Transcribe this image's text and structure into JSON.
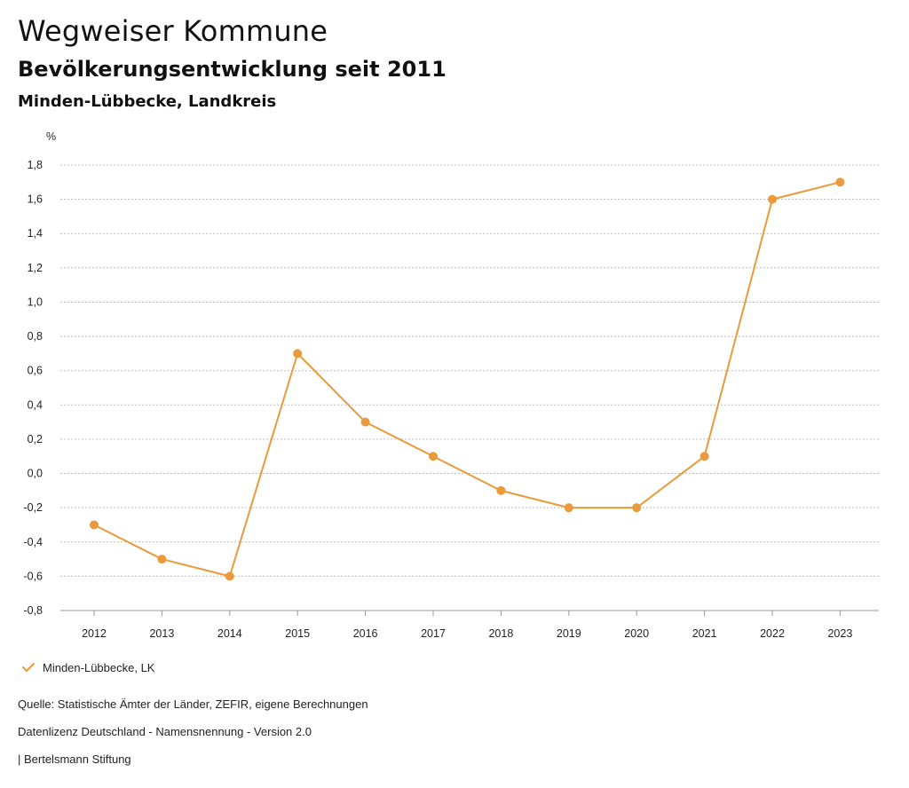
{
  "header": {
    "title": "Wegweiser Kommune",
    "subtitle": "Bevölkerungsentwicklung seit 2011",
    "region": "Minden-Lübbecke, Landkreis"
  },
  "legend": {
    "label": "Minden-Lübbecke, LK",
    "icon": "checkmark-icon"
  },
  "footer": {
    "source": "Quelle: Statistische Ämter der Länder, ZEFIR, eigene Berechnungen",
    "license": "Datenlizenz Deutschland - Namensnennung - Version 2.0",
    "brand": "| Bertelsmann Stiftung"
  },
  "colors": {
    "series": "#ea9a3a",
    "grid": "#bbbbbb",
    "axis": "#999999"
  },
  "chart_data": {
    "type": "line",
    "title": "Bevölkerungsentwicklung seit 2011",
    "xlabel": "",
    "ylabel": "%",
    "categories": [
      "2012",
      "2013",
      "2014",
      "2015",
      "2016",
      "2017",
      "2018",
      "2019",
      "2020",
      "2021",
      "2022",
      "2023"
    ],
    "series": [
      {
        "name": "Minden-Lübbecke, LK",
        "values": [
          -0.3,
          -0.5,
          -0.6,
          0.7,
          0.3,
          0.1,
          -0.1,
          -0.2,
          -0.2,
          0.1,
          1.6,
          1.7
        ]
      }
    ],
    "ylim": [
      -0.8,
      1.8
    ],
    "yticks": [
      "1,8",
      "1,6",
      "1,4",
      "1,2",
      "1,0",
      "0,8",
      "0,6",
      "0,4",
      "0,2",
      "0,0",
      "-0,2",
      "-0,4",
      "-0,6",
      "-0,8"
    ],
    "ytick_values": [
      1.8,
      1.6,
      1.4,
      1.2,
      1.0,
      0.8,
      0.6,
      0.4,
      0.2,
      0.0,
      -0.2,
      -0.4,
      -0.6,
      -0.8
    ],
    "grid": true,
    "legend_position": "bottom-left"
  }
}
